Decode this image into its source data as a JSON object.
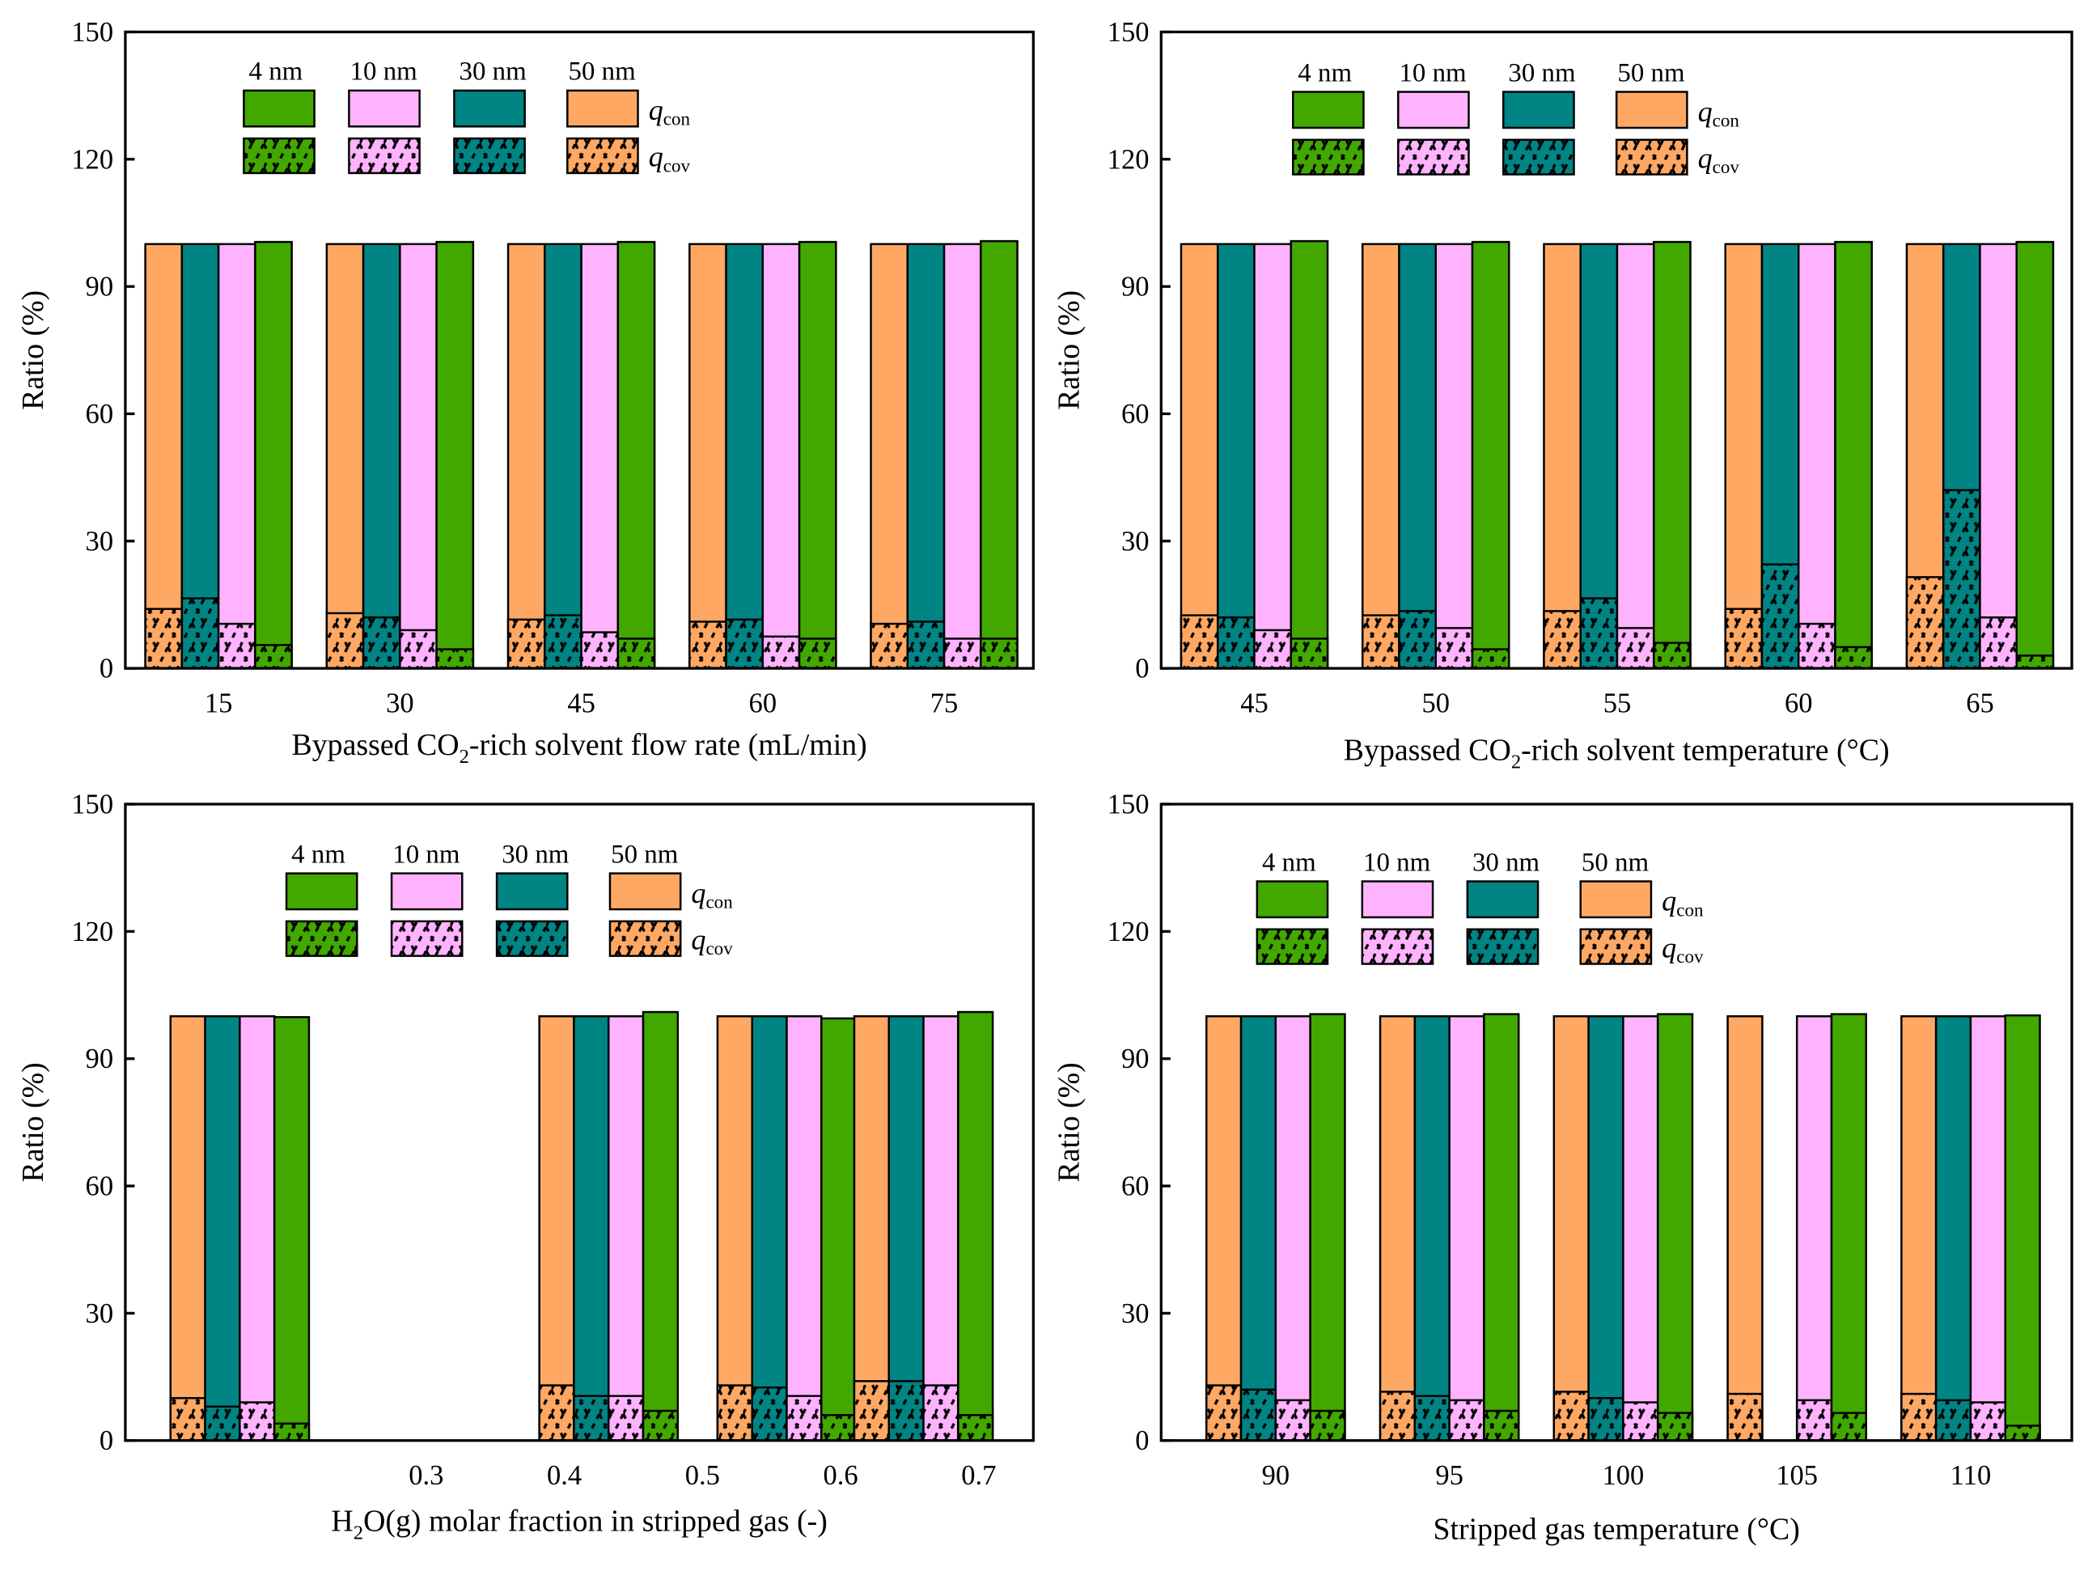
{
  "colors": {
    "50 nm": "#FFA864",
    "30 nm": "#008484",
    "10 nm": "#FFB3FF",
    "4 nm": "#42A800"
  },
  "legend": {
    "sizes": [
      "4 nm",
      "10 nm",
      "30 nm",
      "50 nm"
    ],
    "qcon": {
      "q": "q",
      "sub": "con"
    },
    "qcov": {
      "q": "q",
      "sub": "cov"
    }
  },
  "chart_data": [
    {
      "type": "bar",
      "ylabel": "Ratio (%)",
      "xlabel": {
        "pre": "Bypassed CO",
        "sub": "2",
        "post": "-rich solvent flow rate (mL/min)"
      },
      "ylim": [
        0,
        150
      ],
      "yticks": [
        "0",
        "30",
        "60",
        "90",
        "120",
        "150"
      ],
      "categories": [
        "15",
        "30",
        "45",
        "60",
        "75"
      ],
      "series_order": [
        "50 nm",
        "30 nm",
        "10 nm",
        "4 nm"
      ],
      "total": [
        [
          100,
          100,
          100,
          100.5
        ],
        [
          100,
          100,
          100,
          100.5
        ],
        [
          100,
          100,
          100,
          100.5
        ],
        [
          100,
          100,
          100,
          100.5
        ],
        [
          100,
          100,
          100,
          100.7
        ]
      ],
      "q_cov": [
        [
          14,
          16.5,
          10.5,
          5.5
        ],
        [
          13,
          12,
          9,
          4.5
        ],
        [
          11.5,
          12.5,
          8.5,
          7
        ],
        [
          11,
          11.5,
          7.5,
          7
        ],
        [
          10.5,
          11,
          7,
          7
        ]
      ]
    },
    {
      "type": "bar",
      "ylabel": "Ratio (%)",
      "xlabel": {
        "pre": "Bypassed CO",
        "sub": "2",
        "post": "-rich solvent temperature (°C)"
      },
      "ylim": [
        0,
        150
      ],
      "yticks": [
        "0",
        "30",
        "60",
        "90",
        "120",
        "150"
      ],
      "categories": [
        "45",
        "50",
        "55",
        "60",
        "65"
      ],
      "series_order": [
        "50 nm",
        "30 nm",
        "10 nm",
        "4 nm"
      ],
      "total": [
        [
          100,
          100,
          100,
          100.7
        ],
        [
          100,
          100,
          100,
          100.5
        ],
        [
          100,
          100,
          100,
          100.5
        ],
        [
          100,
          100,
          100,
          100.5
        ],
        [
          100,
          100,
          100,
          100.5
        ]
      ],
      "q_cov": [
        [
          12.5,
          12,
          9,
          7
        ],
        [
          12.5,
          13.5,
          9.5,
          4.5
        ],
        [
          13.5,
          16.5,
          9.5,
          6
        ],
        [
          14,
          24.5,
          10.5,
          5
        ],
        [
          21.5,
          42,
          12,
          3
        ]
      ]
    },
    {
      "type": "bar",
      "ylabel": "Ratio (%)",
      "xlabel": {
        "pre": "H",
        "sub": "2",
        "post": "O(g) molar fraction in stripped gas (-)"
      },
      "ylim": [
        0,
        150
      ],
      "yticks": [
        "0",
        "30",
        "60",
        "90",
        "120",
        "150"
      ],
      "categories": [
        "0.3",
        "0.4",
        "0.5",
        "0.6",
        "0.7"
      ],
      "group_x": [
        0.165,
        null,
        0.432,
        0.561,
        0.66
      ],
      "series_order": [
        "50 nm",
        "30 nm",
        "10 nm",
        "4 nm"
      ],
      "total": [
        [
          100,
          100,
          100,
          99.8
        ],
        null,
        [
          100,
          100,
          100,
          101
        ],
        [
          100,
          100,
          100,
          99.5
        ],
        [
          100,
          100,
          100,
          101
        ]
      ],
      "q_cov": [
        [
          10,
          8,
          9,
          4
        ],
        null,
        [
          13,
          10.5,
          10.5,
          7
        ],
        [
          13,
          12.5,
          10.5,
          6
        ],
        [
          14,
          14,
          13,
          6
        ]
      ]
    },
    {
      "type": "bar",
      "ylabel": "Ratio (%)",
      "xlabel": {
        "pre": "Stripped gas temperature (°C)",
        "sub": "",
        "post": ""
      },
      "ylim": [
        0,
        150
      ],
      "yticks": [
        "0",
        "30",
        "60",
        "90",
        "120",
        "150"
      ],
      "categories": [
        "90",
        "95",
        "100",
        "105",
        "110"
      ],
      "series_order": [
        "50 nm",
        "30 nm",
        "10 nm",
        "4 nm"
      ],
      "total": [
        [
          100,
          100,
          100,
          100.5
        ],
        [
          100,
          100,
          100,
          100.5
        ],
        [
          100,
          100,
          100,
          100.5
        ],
        [
          100,
          null,
          100,
          100.5
        ],
        [
          100,
          100,
          100,
          100.2
        ]
      ],
      "q_cov": [
        [
          13,
          12,
          9.5,
          7
        ],
        [
          11.5,
          10.5,
          9.5,
          7
        ],
        [
          11.5,
          10,
          9,
          6.5
        ],
        [
          11,
          null,
          9.5,
          6.5
        ],
        [
          11,
          9.5,
          9,
          3.5
        ]
      ]
    }
  ]
}
